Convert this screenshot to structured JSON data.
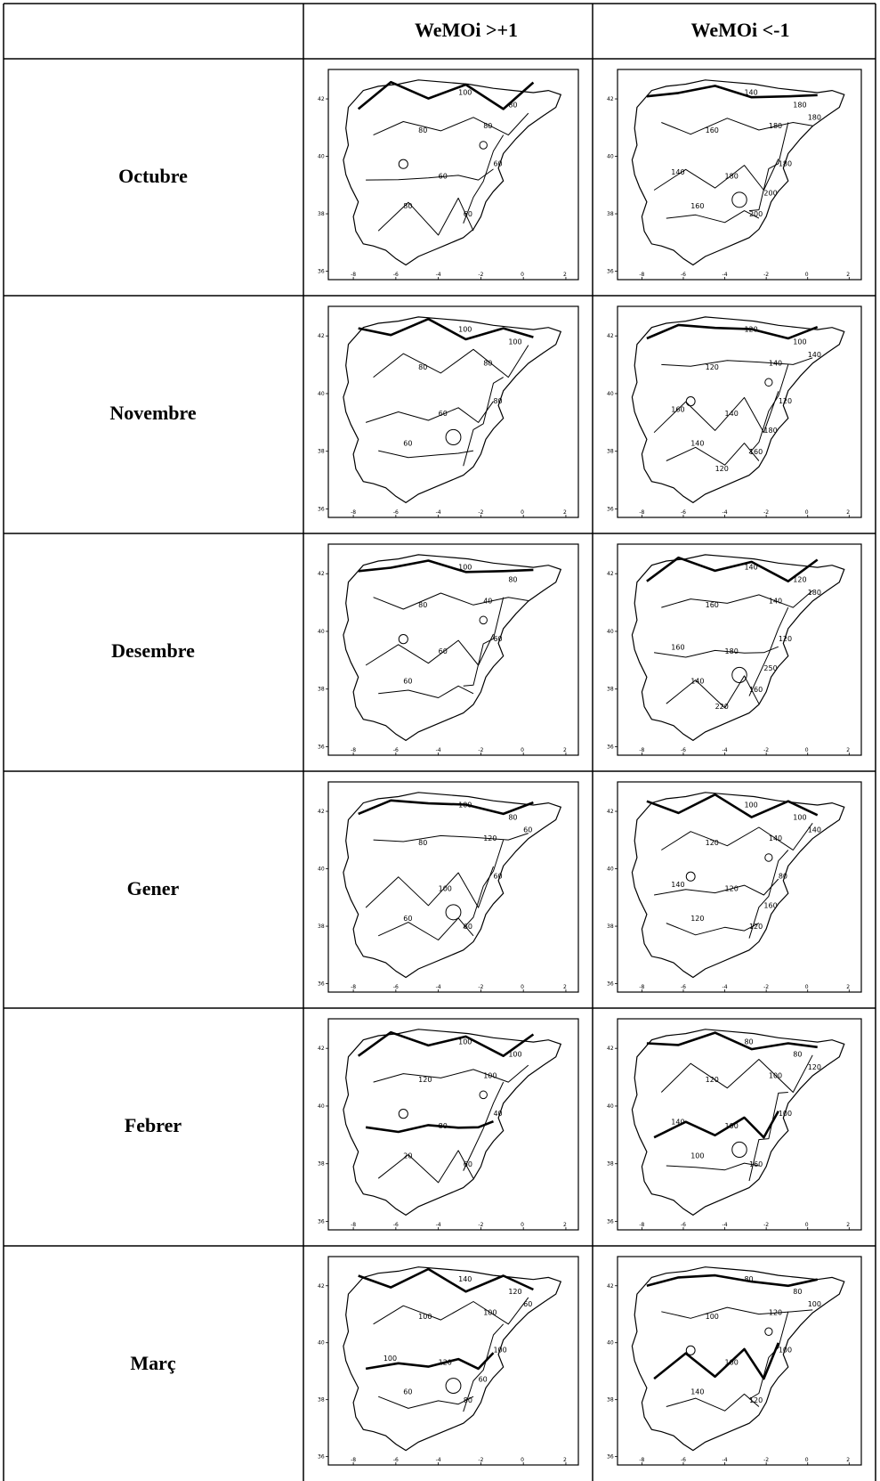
{
  "header": {
    "col1": "WeMOi >+1",
    "col2": "WeMOi <-1"
  },
  "rows": [
    {
      "month": "Octubre",
      "map_positive": {
        "contour_labels": [
          "100",
          "80",
          "80",
          "80",
          "60",
          "60",
          "80",
          "60"
        ]
      },
      "map_negative": {
        "contour_labels": [
          "140",
          "180",
          "160",
          "180",
          "180",
          "180",
          "160",
          "200",
          "180",
          "140",
          "200"
        ]
      }
    },
    {
      "month": "Novembre",
      "map_positive": {
        "contour_labels": [
          "100",
          "100",
          "80",
          "80",
          "60",
          "80",
          "60"
        ]
      },
      "map_negative": {
        "contour_labels": [
          "120",
          "100",
          "120",
          "140",
          "140",
          "120",
          "140",
          "160",
          "140",
          "160",
          "180",
          "120"
        ]
      }
    },
    {
      "month": "Desembre",
      "map_positive": {
        "contour_labels": [
          "100",
          "80",
          "80",
          "40",
          "60",
          "60",
          "60"
        ]
      },
      "map_negative": {
        "contour_labels": [
          "140",
          "120",
          "160",
          "140",
          "180",
          "120",
          "140",
          "160",
          "180",
          "160",
          "250",
          "220"
        ]
      }
    },
    {
      "month": "Gener",
      "map_positive": {
        "contour_labels": [
          "100",
          "80",
          "80",
          "120",
          "100",
          "60",
          "60",
          "60",
          "60"
        ]
      },
      "map_negative": {
        "contour_labels": [
          "100",
          "100",
          "120",
          "140",
          "120",
          "80",
          "120",
          "120",
          "140",
          "140",
          "160"
        ]
      }
    },
    {
      "month": "Febrer",
      "map_positive": {
        "contour_labels": [
          "100",
          "100",
          "120",
          "100",
          "80",
          "40",
          "20",
          "60"
        ]
      },
      "map_negative": {
        "contour_labels": [
          "80",
          "80",
          "120",
          "100",
          "100",
          "100",
          "100",
          "160",
          "120",
          "140"
        ]
      }
    },
    {
      "month": "Març",
      "map_positive": {
        "contour_labels": [
          "140",
          "120",
          "100",
          "100",
          "120",
          "100",
          "60",
          "80",
          "60",
          "100",
          "60"
        ]
      },
      "map_negative": {
        "contour_labels": [
          "80",
          "80",
          "100",
          "120",
          "100",
          "100",
          "140",
          "120",
          "100"
        ]
      }
    }
  ],
  "axes": {
    "lat_ticks": [
      "42",
      "40",
      "38",
      "36"
    ],
    "lon_ticks": [
      "-8",
      "-6",
      "-4",
      "-2",
      "0",
      "2"
    ]
  }
}
